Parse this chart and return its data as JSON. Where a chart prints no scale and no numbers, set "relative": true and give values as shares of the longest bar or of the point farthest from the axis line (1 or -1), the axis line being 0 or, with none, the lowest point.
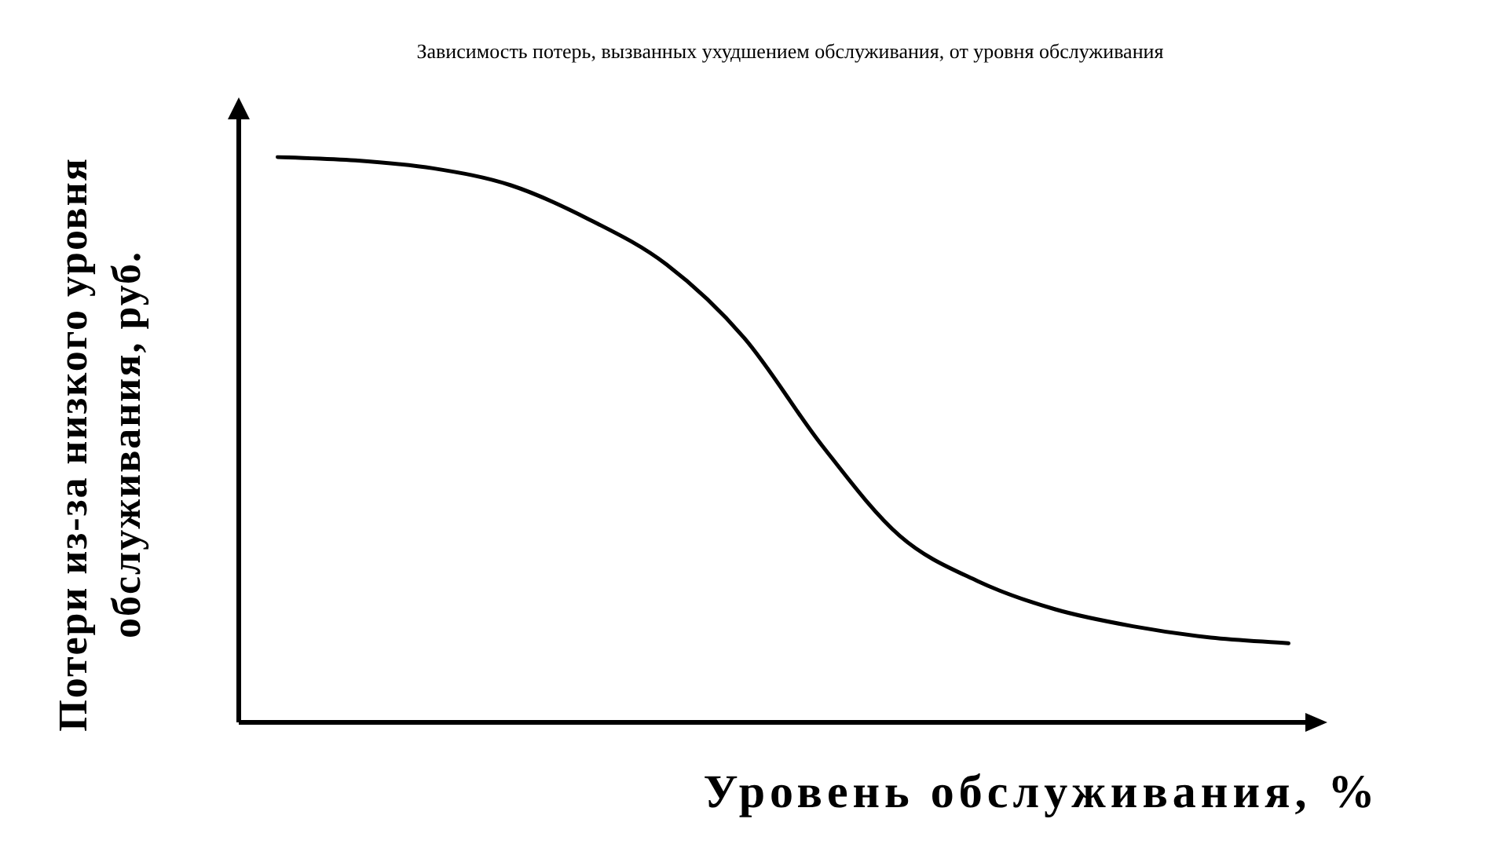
{
  "chart_data": {
    "type": "line",
    "relative": true,
    "title": "Зависимость потерь, вызванных  ухудшением обслуживания, от уровня обслуживания",
    "xlabel": "Уровень обслуживания, %",
    "ylabel": "Потери из-за низкого уровня обслуживания, руб.",
    "categories": [
      null,
      null,
      null,
      null,
      null,
      null,
      null,
      null,
      null,
      null,
      null,
      null,
      null,
      null
    ],
    "series": [
      {
        "color": "#000000",
        "values": [
          1.0,
          0.994,
          0.98,
          0.95,
          0.89,
          0.81,
          0.68,
          0.49,
          0.33,
          0.25,
          0.2,
          0.17,
          0.15,
          0.14
        ]
      }
    ],
    "legend": false,
    "marker": "none",
    "line_style": "solid"
  }
}
